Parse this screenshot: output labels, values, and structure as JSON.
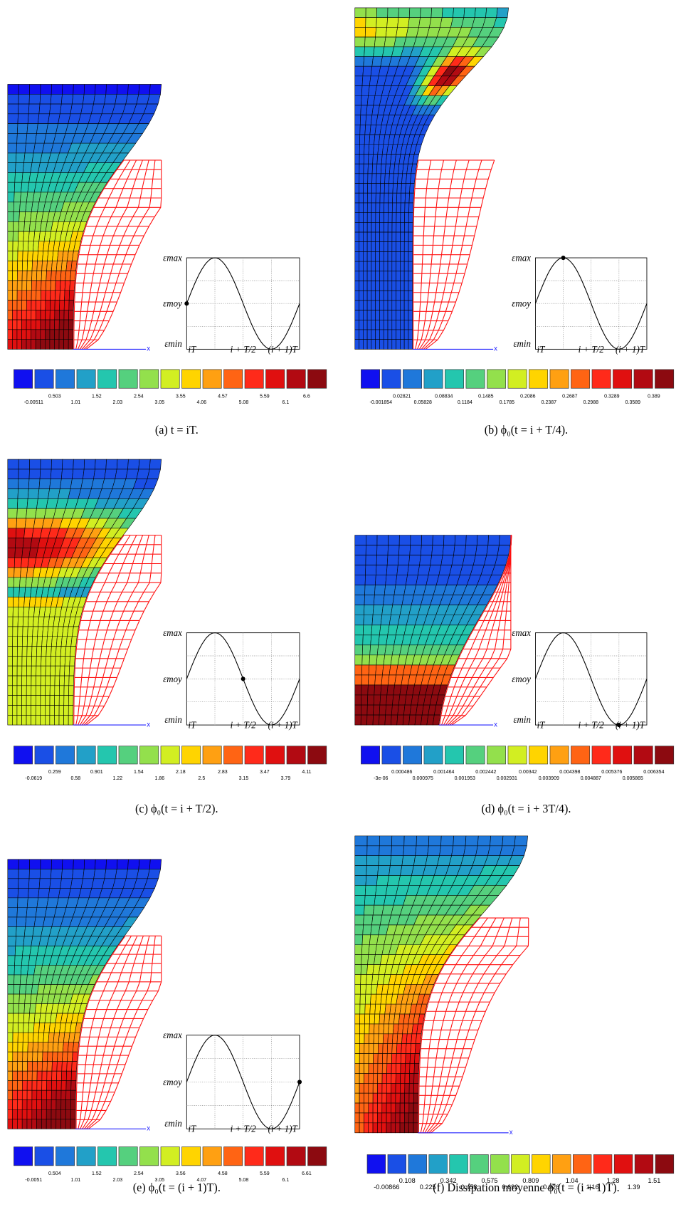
{
  "panels": [
    {
      "caption": "(a) t = iT.",
      "axis_label": "x",
      "colorbar_labels": [
        "-0.00511",
        "0.503",
        "1.01",
        "1.52",
        "2.03",
        "2.54",
        "3.05",
        "3.55",
        "4.06",
        "4.57",
        "5.08",
        "5.59",
        "6.1",
        "6.6"
      ],
      "inset": {
        "y_labels": [
          "εmax",
          "εmoy",
          "εmin"
        ],
        "x_labels": [
          "iT",
          "i + T/2",
          "(i + 1)T"
        ]
      }
    },
    {
      "caption": "(b) ϕ₀(t = i + T/4).",
      "axis_label": "x",
      "colorbar_labels": [
        "-0.001854",
        "0.02821",
        "0.05828",
        "0.08834",
        "0.1184",
        "0.1485",
        "0.1785",
        "0.2086",
        "0.2387",
        "0.2687",
        "0.2988",
        "0.3289",
        "0.3589",
        "0.389"
      ],
      "inset": {
        "y_labels": [
          "εmax",
          "εmoy",
          "εmin"
        ],
        "x_labels": [
          "iT",
          "i + T/2",
          "(i + 1)T"
        ]
      }
    },
    {
      "caption": "(c) ϕ₀(t = i + T/2).",
      "axis_label": "x",
      "colorbar_labels": [
        "-0.0619",
        "0.259",
        "0.58",
        "0.901",
        "1.22",
        "1.54",
        "1.86",
        "2.18",
        "2.5",
        "2.83",
        "3.15",
        "3.47",
        "3.79",
        "4.11"
      ],
      "inset": {
        "y_labels": [
          "εmax",
          "εmoy",
          "εmin"
        ],
        "x_labels": [
          "iT",
          "i + T/2",
          "(i + 1)T"
        ]
      }
    },
    {
      "caption": "(d) ϕ₀(t = i + 3T/4).",
      "axis_label": "x",
      "colorbar_labels": [
        "-3e-06",
        "0.000486",
        "0.000975",
        "0.001464",
        "0.001953",
        "0.002442",
        "0.002931",
        "0.00342",
        "0.003909",
        "0.004398",
        "0.004887",
        "0.005376",
        "0.005865",
        "0.006354"
      ],
      "inset": {
        "y_labels": [
          "εmax",
          "εmoy",
          "εmin"
        ],
        "x_labels": [
          "iT",
          "i + T/2",
          "(i + 1)T"
        ]
      }
    },
    {
      "caption": "(e) ϕ₀(t = (i + 1)T).",
      "axis_label": "x",
      "colorbar_labels": [
        "-0.0051",
        "0.504",
        "1.01",
        "1.52",
        "2.03",
        "2.54",
        "3.05",
        "3.56",
        "4.07",
        "4.58",
        "5.08",
        "5.59",
        "6.1",
        "6.61"
      ],
      "inset": {
        "y_labels": [
          "εmax",
          "εmoy",
          "εmin"
        ],
        "x_labels": [
          "iT",
          "i + T/2",
          "(i + 1)T"
        ]
      }
    },
    {
      "caption": "(f) Dissipation moyenne ϕ̄₀(t = (i + 1)T).",
      "axis_label": "x",
      "colorbar_labels": [
        "-0.00866",
        "0.108",
        "0.225",
        "0.342",
        "0.458",
        "0.575",
        "0.692",
        "0.809",
        "0.926",
        "1.04",
        "1.16",
        "1.28",
        "1.39",
        "1.51"
      ]
    }
  ]
}
